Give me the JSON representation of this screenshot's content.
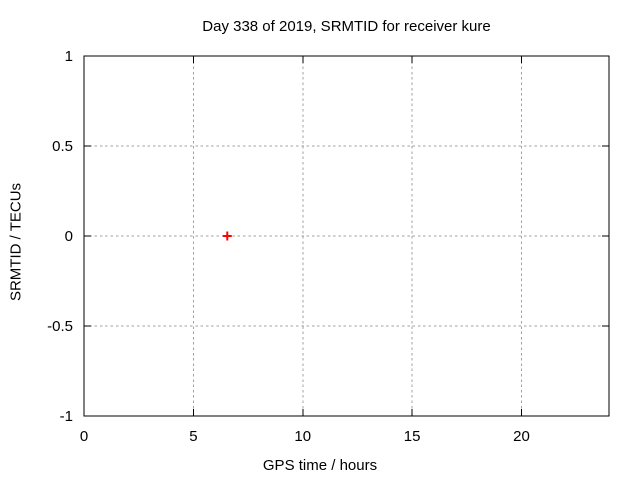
{
  "chart_data": {
    "type": "scatter",
    "title": "Day 338 of 2019, SRMTID for receiver kure",
    "xlabel": "GPS time / hours",
    "ylabel": "SRMTID / TECUs",
    "xlim": [
      0,
      24
    ],
    "ylim": [
      -1,
      1
    ],
    "xticks": [
      0,
      5,
      10,
      15,
      20
    ],
    "xtick_labels": [
      "0",
      "5",
      "10",
      "15",
      "20"
    ],
    "yticks": [
      1,
      0.5,
      0,
      -0.5,
      -1
    ],
    "ytick_labels": [
      "1",
      "0.5",
      "0",
      "-0.5",
      "-1"
    ],
    "grid": true,
    "grid_style": "dotted",
    "legend_position": "none",
    "series": [
      {
        "name": "SRMTID",
        "marker": "plus",
        "color": "#ff0000",
        "points": [
          {
            "x": 6.55,
            "y": 0
          }
        ]
      }
    ],
    "colors": {
      "background": "#ffffff",
      "border": "#000000",
      "grid": "#a0a0a0",
      "text": "#000000",
      "point": "#ff0000"
    }
  }
}
